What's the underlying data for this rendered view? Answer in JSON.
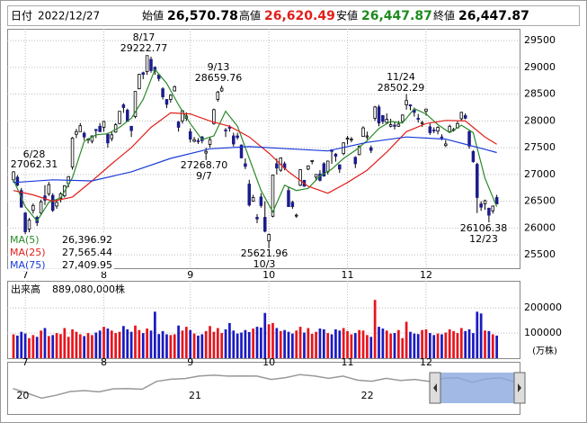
{
  "header": {
    "date_label": "日付",
    "date": "2022/12/27",
    "items": [
      {
        "label": "始値",
        "value": "26,570.78"
      },
      {
        "label": "高値",
        "value": "26,620.49"
      },
      {
        "label": "安値",
        "value": "26,447.87"
      },
      {
        "label": "終値",
        "value": "26,447.87"
      }
    ]
  },
  "chart_data": {
    "type": "candlestick",
    "xlim": [
      -1.6,
      128.8
    ],
    "ylim": [
      25250,
      29720
    ],
    "yticks": [
      25500,
      26000,
      26500,
      27000,
      27500,
      28000,
      28500,
      29000,
      29500
    ],
    "xticks": [
      {
        "value": 3,
        "label": "7"
      },
      {
        "value": 23,
        "label": "8"
      },
      {
        "value": 45,
        "label": "9"
      },
      {
        "value": 65,
        "label": "10"
      },
      {
        "value": 85,
        "label": "11"
      },
      {
        "value": 105,
        "label": "12"
      }
    ],
    "grid": true,
    "up_color": "#ffffff",
    "down_color": "#1c1c8c",
    "wick_color": "#000000",
    "candles": [
      [
        26900,
        27062.31,
        26850,
        27050
      ],
      [
        26950,
        26990,
        26780,
        26800
      ],
      [
        26700,
        26750,
        26380,
        26390
      ],
      [
        26280,
        26300,
        25850,
        25930
      ],
      [
        25980,
        26190,
        25920,
        26150
      ],
      [
        26330,
        26460,
        26270,
        26420
      ],
      [
        26200,
        26230,
        26040,
        26100
      ],
      [
        26280,
        26530,
        26240,
        26490
      ],
      [
        26600,
        26800,
        26430,
        26520
      ],
      [
        26640,
        26860,
        26600,
        26810
      ],
      [
        26610,
        26650,
        26300,
        26330
      ],
      [
        26410,
        26530,
        26360,
        26480
      ],
      [
        26550,
        26670,
        26480,
        26640
      ],
      [
        26600,
        26800,
        26570,
        26790
      ],
      [
        26830,
        26970,
        26760,
        26960
      ],
      [
        27140,
        27700,
        27090,
        27680
      ],
      [
        27750,
        27850,
        27680,
        27800
      ],
      [
        27800,
        27960,
        27800,
        27910
      ],
      [
        27770,
        27800,
        27640,
        27700
      ],
      [
        27650,
        27680,
        27580,
        27660
      ],
      [
        27620,
        27730,
        27580,
        27720
      ],
      [
        27840,
        27850,
        27680,
        27820
      ],
      [
        27900,
        27960,
        27790,
        27800
      ],
      [
        27880,
        28000,
        27800,
        27990
      ],
      [
        27750,
        27780,
        27500,
        27590
      ],
      [
        27670,
        27800,
        27620,
        27740
      ],
      [
        27790,
        27960,
        27780,
        27930
      ],
      [
        27950,
        28180,
        27940,
        28180
      ],
      [
        28300,
        28330,
        28150,
        28250
      ],
      [
        28200,
        28230,
        27990,
        27990
      ],
      [
        27900,
        27900,
        27700,
        27820
      ],
      [
        28080,
        28550,
        28050,
        28550
      ],
      [
        28600,
        28880,
        28590,
        28870
      ],
      [
        28900,
        28920,
        28780,
        28870
      ],
      [
        28920,
        29222.77,
        28860,
        29220
      ],
      [
        29150,
        29200,
        28900,
        28940
      ],
      [
        29000,
        29020,
        28860,
        28930
      ],
      [
        28860,
        28880,
        28740,
        28790
      ],
      [
        28600,
        28630,
        28400,
        28450
      ],
      [
        28400,
        28410,
        28240,
        28310
      ],
      [
        28400,
        28500,
        28340,
        28480
      ],
      [
        28560,
        28660,
        28550,
        28640
      ],
      [
        27980,
        28000,
        27800,
        27880
      ],
      [
        28000,
        28200,
        27950,
        28190
      ],
      [
        28050,
        28160,
        28000,
        28090
      ],
      [
        27800,
        27860,
        27600,
        27660
      ],
      [
        27620,
        27700,
        27600,
        27650
      ],
      [
        27630,
        27680,
        27570,
        27620
      ],
      [
        27700,
        27720,
        27580,
        27630
      ],
      [
        27400,
        27500,
        27268.7,
        27430
      ],
      [
        27560,
        27700,
        27500,
        27650
      ],
      [
        27950,
        28230,
        27930,
        28210
      ],
      [
        28400,
        28560,
        28360,
        28540
      ],
      [
        28560,
        28659.76,
        28540,
        28610
      ],
      [
        27830,
        27870,
        27700,
        27820
      ],
      [
        27880,
        27920,
        27800,
        27870
      ],
      [
        27720,
        27780,
        27520,
        27570
      ],
      [
        27720,
        27780,
        27650,
        27690
      ],
      [
        27550,
        27560,
        27300,
        27310
      ],
      [
        27200,
        27300,
        27100,
        27150
      ],
      [
        26820,
        26900,
        26400,
        26430
      ],
      [
        26500,
        26620,
        26490,
        26570
      ],
      [
        26200,
        26260,
        26090,
        26170
      ],
      [
        26580,
        26650,
        26380,
        26420
      ],
      [
        26200,
        26500,
        25920,
        25940
      ],
      [
        25760,
        25900,
        25621.96,
        25880
      ],
      [
        26220,
        26990,
        26200,
        26990
      ],
      [
        27200,
        27300,
        27000,
        27120
      ],
      [
        27080,
        27320,
        27050,
        27310
      ],
      [
        27200,
        27240,
        27080,
        27120
      ],
      [
        26700,
        26760,
        26400,
        26400
      ],
      [
        26480,
        26510,
        26360,
        26400
      ],
      [
        26230,
        26270,
        26190,
        26240
      ],
      [
        26800,
        27100,
        26780,
        27090
      ],
      [
        26890,
        26900,
        26770,
        26780
      ],
      [
        27100,
        27170,
        27080,
        27160
      ],
      [
        27240,
        27270,
        27190,
        27260
      ],
      [
        26950,
        27000,
        26880,
        27000
      ],
      [
        27010,
        27080,
        26870,
        26890
      ],
      [
        27200,
        27230,
        26960,
        26970
      ],
      [
        27050,
        27260,
        27000,
        27250
      ],
      [
        27460,
        27470,
        27200,
        27430
      ],
      [
        27380,
        27400,
        27240,
        27340
      ],
      [
        27180,
        27190,
        27030,
        27100
      ],
      [
        27390,
        27600,
        27360,
        27590
      ],
      [
        27660,
        27720,
        27560,
        27680
      ],
      [
        27650,
        27700,
        27600,
        27660
      ],
      [
        27320,
        27340,
        27120,
        27200
      ],
      [
        27370,
        27540,
        27360,
        27530
      ],
      [
        27710,
        27900,
        27700,
        27870
      ],
      [
        27700,
        27800,
        27650,
        27720
      ],
      [
        27500,
        27540,
        27400,
        27450
      ],
      [
        28050,
        28280,
        28000,
        28260
      ],
      [
        28260,
        28300,
        27900,
        27960
      ],
      [
        28100,
        28110,
        27940,
        27990
      ],
      [
        27970,
        28140,
        27940,
        28030
      ],
      [
        27900,
        28040,
        27880,
        27930
      ],
      [
        27920,
        27990,
        27840,
        27900
      ],
      [
        27900,
        28000,
        27890,
        27940
      ],
      [
        27990,
        28120,
        27970,
        28110
      ],
      [
        28300,
        28502.29,
        28210,
        28380
      ],
      [
        28300,
        28310,
        28200,
        28280
      ],
      [
        28200,
        28250,
        28080,
        28160
      ],
      [
        28050,
        28130,
        27970,
        28030
      ],
      [
        27950,
        28000,
        27890,
        27970
      ],
      [
        28180,
        28230,
        28100,
        28220
      ],
      [
        27890,
        27950,
        27740,
        27780
      ],
      [
        27830,
        27880,
        27770,
        27820
      ],
      [
        27810,
        27900,
        27750,
        27880
      ],
      [
        27700,
        27750,
        27640,
        27690
      ],
      [
        27540,
        27640,
        27510,
        27570
      ],
      [
        27800,
        27930,
        27790,
        27900
      ],
      [
        27830,
        27870,
        27800,
        27840
      ],
      [
        27870,
        27990,
        27860,
        27950
      ],
      [
        28040,
        28170,
        28010,
        28160
      ],
      [
        28100,
        28140,
        28030,
        28050
      ],
      [
        27800,
        27840,
        27480,
        27530
      ],
      [
        27430,
        27450,
        27220,
        27240
      ],
      [
        27190,
        27220,
        26280,
        26570
      ],
      [
        26450,
        26500,
        26320,
        26390
      ],
      [
        26450,
        26530,
        26340,
        26510
      ],
      [
        26370,
        26380,
        26106.38,
        26240
      ],
      [
        26320,
        26420,
        26270,
        26410
      ],
      [
        26570.78,
        26620.49,
        26447.87,
        26447.87
      ]
    ],
    "ma": [
      {
        "name": "MA(5)",
        "latest": "26,396.92",
        "color": "#2a8a2a",
        "x": [
          0,
          3,
          6,
          9,
          12,
          15,
          18,
          21,
          24,
          27,
          30,
          33,
          36,
          39,
          42,
          45,
          48,
          51,
          54,
          57,
          60,
          63,
          66,
          69,
          72,
          75,
          78,
          81,
          84,
          87,
          90,
          93,
          96,
          99,
          102,
          105,
          108,
          111,
          114,
          117,
          120,
          123
        ],
        "values": [
          26900,
          26400,
          26130,
          26480,
          26560,
          26940,
          27620,
          27740,
          27760,
          27880,
          28050,
          28400,
          28960,
          28700,
          28300,
          27950,
          27650,
          27720,
          28180,
          27900,
          27300,
          26700,
          26300,
          26800,
          26700,
          26740,
          26970,
          27100,
          27300,
          27450,
          27630,
          27860,
          27990,
          27960,
          28230,
          28130,
          27930,
          27780,
          27920,
          27780,
          26930,
          26396.92
        ]
      },
      {
        "name": "MA(25)",
        "latest": "27,565.44",
        "color": "#e0201c",
        "x": [
          0,
          5,
          10,
          15,
          20,
          25,
          30,
          35,
          40,
          45,
          50,
          55,
          60,
          65,
          70,
          75,
          80,
          85,
          90,
          95,
          100,
          105,
          110,
          115,
          120,
          123
        ],
        "values": [
          26700,
          26620,
          26500,
          26580,
          26880,
          27200,
          27500,
          27880,
          28150,
          28130,
          28000,
          27900,
          27700,
          27400,
          27050,
          26780,
          26650,
          26850,
          27080,
          27420,
          27800,
          27950,
          28010,
          28000,
          27700,
          27565.44
        ]
      },
      {
        "name": "MA(75)",
        "latest": "27,409.95",
        "color": "#1a3ad8",
        "x": [
          0,
          10,
          20,
          30,
          40,
          50,
          60,
          70,
          80,
          90,
          100,
          110,
          120,
          123
        ],
        "values": [
          26850,
          26900,
          26880,
          27050,
          27300,
          27480,
          27520,
          27480,
          27440,
          27600,
          27700,
          27660,
          27470,
          27409.95
        ]
      }
    ],
    "annotations": [
      {
        "date": "6/28",
        "price": "27062.31"
      },
      {
        "date": "8/17",
        "price": "29222.77"
      },
      {
        "date": "9/13",
        "price": "28659.76"
      },
      {
        "date": "9/7",
        "price": "27268.70"
      },
      {
        "date": "10/3",
        "price": "25621.96"
      },
      {
        "date": "11/24",
        "price": "28502.29"
      },
      {
        "date": "12/23",
        "price": "26106.38"
      }
    ],
    "volume": {
      "title": "出来高",
      "total": "889,080,000株",
      "unit": "(万株)",
      "ylim": [
        0,
        308000
      ],
      "yticks": [
        100000,
        200000
      ],
      "up_color": "#e8141c",
      "down_color": "#1a1ac0",
      "values": [
        95000,
        90000,
        105000,
        98000,
        80000,
        92000,
        85000,
        110000,
        120000,
        88000,
        92000,
        100000,
        96000,
        120000,
        85000,
        115000,
        105000,
        95000,
        88000,
        100000,
        92000,
        102000,
        110000,
        125000,
        118000,
        110000,
        100000,
        105000,
        128000,
        115000,
        105000,
        130000,
        112000,
        100000,
        118000,
        110000,
        185000,
        96000,
        108000,
        95000,
        92000,
        95000,
        130000,
        110000,
        125000,
        112000,
        98000,
        90000,
        95000,
        108000,
        128000,
        105000,
        120000,
        100000,
        115000,
        140000,
        110000,
        98000,
        102000,
        112000,
        104000,
        118000,
        125000,
        122000,
        180000,
        135000,
        140000,
        120000,
        108000,
        112000,
        105000,
        98000,
        110000,
        125000,
        102000,
        120000,
        97000,
        105000,
        118000,
        115000,
        100000,
        95000,
        115000,
        110000,
        120000,
        108000,
        95000,
        100000,
        112000,
        110000,
        92000,
        85000,
        232000,
        125000,
        118000,
        110000,
        98000,
        100000,
        112000,
        80000,
        145000,
        105000,
        98000,
        96000,
        112000,
        115000,
        100000,
        92000,
        98000,
        95000,
        102000,
        115000,
        108000,
        100000,
        120000,
        108000,
        115000,
        100000,
        185000,
        178000,
        110000,
        108000,
        95000,
        90000
      ]
    },
    "navigator": {
      "xlim": [
        -0.4,
        35.3
      ],
      "ylim": [
        15000,
        32000
      ],
      "xticks": [
        {
          "value": 0,
          "label": "20"
        },
        {
          "value": 12,
          "label": "21"
        },
        {
          "value": 24,
          "label": "22"
        }
      ],
      "values": [
        23200,
        21100,
        18900,
        20200,
        21900,
        22300,
        21700,
        23100,
        23200,
        22900,
        26400,
        27400,
        27700,
        28900,
        29200,
        28800,
        28900,
        28800,
        27300,
        28100,
        29500,
        28900,
        27800,
        28800,
        27000,
        26500,
        27800,
        26800,
        27300,
        26400,
        27800,
        28100,
        26000,
        27600,
        28000,
        26100
      ]
    }
  }
}
